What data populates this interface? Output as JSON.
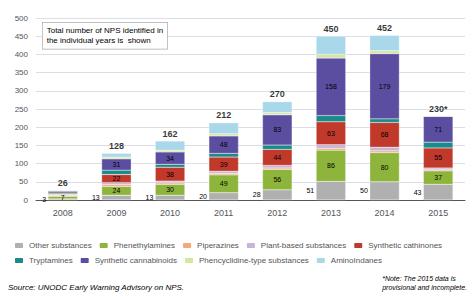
{
  "chart_data": {
    "type": "bar",
    "stacked": true,
    "categories": [
      "2008",
      "2009",
      "2010",
      "2011",
      "2012",
      "2013",
      "2014",
      "2015"
    ],
    "series": [
      {
        "name": "Other substances",
        "color": "#b0b0b0",
        "values": [
          3,
          13,
          13,
          20,
          28,
          51,
          50,
          43
        ],
        "data_labels": true,
        "value_labels": [
          "3",
          "13",
          "13",
          "20",
          "28",
          "51",
          "50",
          "43"
        ]
      },
      {
        "name": "Phenethylamines",
        "color": "#8db53c",
        "values": [
          7,
          24,
          30,
          49,
          56,
          86,
          80,
          37
        ],
        "data_labels": true,
        "value_labels": [
          "7",
          "24",
          "30",
          "49",
          "56",
          "86",
          "80",
          "37"
        ]
      },
      {
        "name": "Piperazines",
        "color": "#f4a97a",
        "values": [
          3,
          5,
          4,
          4,
          4,
          5,
          5,
          3
        ]
      },
      {
        "name": "Plant-based substances",
        "color": "#c8b4d8",
        "values": [
          3,
          6,
          5,
          6,
          7,
          10,
          10,
          5
        ]
      },
      {
        "name": "Synthetic cathinones",
        "color": "#c0392b",
        "values": [
          3,
          22,
          38,
          39,
          44,
          63,
          68,
          55
        ],
        "data_labels": true,
        "value_labels": [
          null,
          "22",
          "38",
          "39",
          "44",
          "63",
          "68",
          "55"
        ]
      },
      {
        "name": "Tryptamines",
        "color": "#1a8a8a",
        "values": [
          4,
          12,
          8,
          10,
          12,
          17,
          10,
          16
        ]
      },
      {
        "name": "Synthetic cannabinoids",
        "color": "#5b4ea0",
        "values": [
          3,
          31,
          34,
          48,
          83,
          158,
          179,
          71
        ],
        "data_labels": true,
        "value_labels": [
          null,
          "31",
          "34",
          "48",
          "83",
          "158",
          "179",
          "71"
        ]
      },
      {
        "name": "Phencyclidine-type substances",
        "color": "#d4e6a0",
        "values": [
          0,
          5,
          5,
          6,
          6,
          10,
          8,
          0
        ]
      },
      {
        "name": "AminoIndanes",
        "color": "#a8d8ea",
        "values": [
          0,
          10,
          25,
          30,
          30,
          50,
          42,
          0
        ]
      }
    ],
    "totals": [
      26,
      128,
      162,
      212,
      270,
      450,
      452,
      230
    ],
    "total_labels": [
      "26",
      "128",
      "162",
      "212",
      "270",
      "450",
      "452",
      "230*"
    ],
    "ylim": [
      0,
      500
    ],
    "yticks": [
      0,
      50,
      100,
      150,
      200,
      250,
      300,
      350,
      400,
      450,
      500
    ],
    "grid": true,
    "legend": "bottom",
    "annotation": "Total number of NPS identified in\nthe individual years is  shown",
    "source": "Source: UNODC Early Warning Advisory on NPS.",
    "note": "*Note: The 2015 data is\nprovisional and incomplete."
  }
}
